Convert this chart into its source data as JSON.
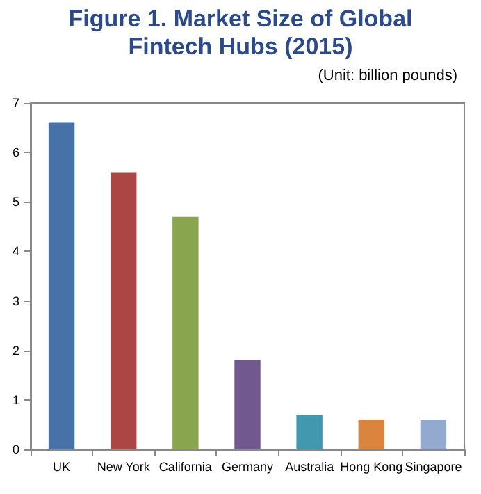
{
  "chart_data": {
    "type": "bar",
    "title": "Figure 1. Market Size of Global Fintech Hubs (2015)",
    "subtitle": "(Unit: billion pounds)",
    "categories": [
      "UK",
      "New York",
      "California",
      "Germany",
      "Australia",
      "Hong Kong",
      "Singapore"
    ],
    "values": [
      6.6,
      5.6,
      4.7,
      1.8,
      0.7,
      0.6,
      0.6
    ],
    "colors": [
      "#4672a8",
      "#aa4644",
      "#89a54e",
      "#71588f",
      "#4198af",
      "#db843d",
      "#93a9cf"
    ],
    "ylim": [
      0,
      7
    ],
    "yticks": [
      0,
      1,
      2,
      3,
      4,
      5,
      6,
      7
    ]
  }
}
